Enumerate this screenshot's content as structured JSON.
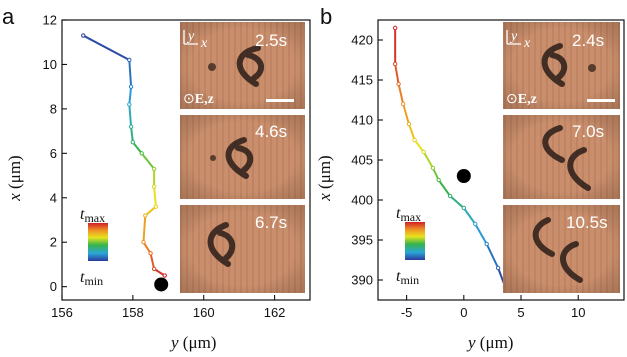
{
  "colors": {
    "inset_bg": "#c98f6c",
    "inset_stripe": "#b9785a",
    "defect": "#2a1d18",
    "marker": "#000000",
    "time_gradient": [
      "#2b3a9c",
      "#2aa6d8",
      "#37b44a",
      "#e9e31e",
      "#ee8a25",
      "#cf2027"
    ]
  },
  "chart_data": [
    {
      "panel": "a",
      "type": "line",
      "xlabel_italic": "y",
      "xlabel_unit": "(μm)",
      "ylabel_italic": "x",
      "ylabel_unit": "(μm)",
      "xlim": [
        156,
        163
      ],
      "ylim": [
        -0.6,
        12
      ],
      "xticks": [
        156,
        158,
        160,
        162
      ],
      "yticks": [
        0,
        2,
        4,
        6,
        8,
        10,
        12
      ],
      "trajectory": {
        "x": [
          156.6,
          157.9,
          157.95,
          157.9,
          157.95,
          158.0,
          158.25,
          158.6,
          158.6,
          158.65,
          158.35,
          158.3,
          158.5,
          158.6,
          158.9
        ],
        "y": [
          11.3,
          10.2,
          9.0,
          8.2,
          7.2,
          6.5,
          6.0,
          5.3,
          4.5,
          3.6,
          3.2,
          2.0,
          1.5,
          0.8,
          0.5
        ]
      },
      "marker": {
        "x": 158.8,
        "y": 0.1
      },
      "colorbar": {
        "label_max": "t",
        "sub_max": "max",
        "label_min": "t",
        "sub_min": "min"
      },
      "insets": [
        {
          "time": "2.5s",
          "axis_y": "y",
          "axis_x": "x",
          "field": "E,z",
          "field_prefix": "⊙"
        },
        {
          "time": "4.6s"
        },
        {
          "time": "6.7s"
        }
      ]
    },
    {
      "panel": "b",
      "type": "line",
      "xlabel_italic": "y",
      "xlabel_unit": "(μm)",
      "ylabel_italic": "x",
      "ylabel_unit": "(μm)",
      "xlim": [
        -7.5,
        14
      ],
      "ylim": [
        387.5,
        422.5
      ],
      "xticks": [
        -5,
        0,
        5,
        10
      ],
      "yticks": [
        390,
        395,
        400,
        405,
        410,
        415,
        420
      ],
      "trajectory": {
        "x": [
          -6.0,
          -6.0,
          -5.7,
          -5.3,
          -4.8,
          -4.3,
          -3.5,
          -2.7,
          -2.2,
          -1.2,
          0.0,
          1.0,
          2.0,
          3.0,
          3.6
        ],
        "y": [
          421.5,
          417.0,
          414.5,
          412.0,
          409.5,
          407.5,
          406.0,
          404.0,
          402.5,
          400.5,
          399.0,
          397.0,
          394.5,
          391.5,
          389.2
        ]
      },
      "marker": {
        "x": 0.0,
        "y": 403.0
      },
      "colorbar": {
        "label_max": "t",
        "sub_max": "max",
        "label_min": "t",
        "sub_min": "min"
      },
      "insets": [
        {
          "time": "2.4s",
          "axis_y": "y",
          "axis_x": "x",
          "field": "E,z",
          "field_prefix": "⊙"
        },
        {
          "time": "7.0s"
        },
        {
          "time": "10.5s"
        }
      ]
    }
  ]
}
